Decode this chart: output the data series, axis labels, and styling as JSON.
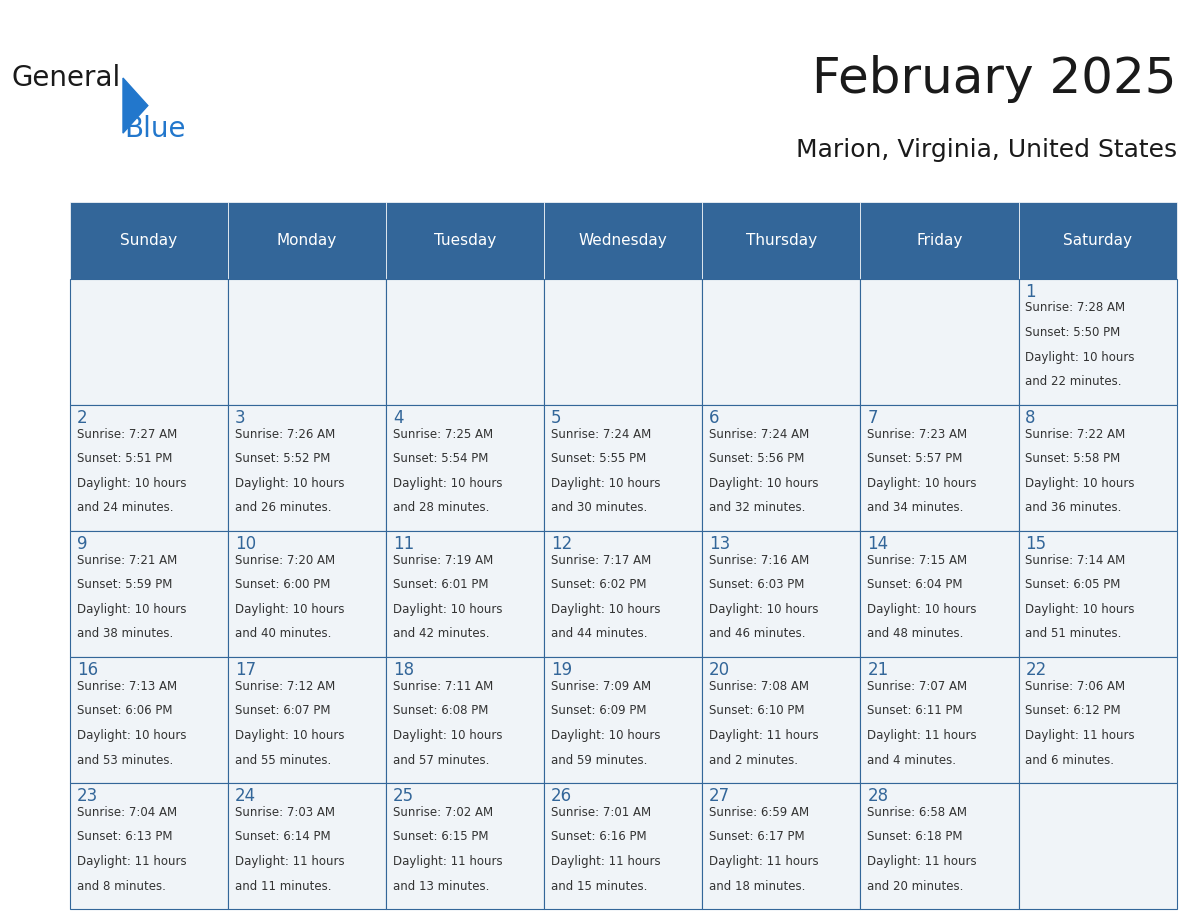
{
  "title": "February 2025",
  "subtitle": "Marion, Virginia, United States",
  "days_of_week": [
    "Sunday",
    "Monday",
    "Tuesday",
    "Wednesday",
    "Thursday",
    "Friday",
    "Saturday"
  ],
  "header_bg": "#336699",
  "header_text": "#ffffff",
  "cell_bg_light": "#f0f4f8",
  "cell_bg_white": "#ffffff",
  "border_color": "#336699",
  "day_number_color": "#336699",
  "text_color": "#333333",
  "logo_general_color": "#222222",
  "logo_blue_color": "#2277cc",
  "weeks": [
    [
      null,
      null,
      null,
      null,
      null,
      null,
      1
    ],
    [
      2,
      3,
      4,
      5,
      6,
      7,
      8
    ],
    [
      9,
      10,
      11,
      12,
      13,
      14,
      15
    ],
    [
      16,
      17,
      18,
      19,
      20,
      21,
      22
    ],
    [
      23,
      24,
      25,
      26,
      27,
      28,
      null
    ]
  ],
  "cell_data": {
    "1": {
      "sunrise": "7:28 AM",
      "sunset": "5:50 PM",
      "daylight": "10 hours and 22 minutes"
    },
    "2": {
      "sunrise": "7:27 AM",
      "sunset": "5:51 PM",
      "daylight": "10 hours and 24 minutes"
    },
    "3": {
      "sunrise": "7:26 AM",
      "sunset": "5:52 PM",
      "daylight": "10 hours and 26 minutes"
    },
    "4": {
      "sunrise": "7:25 AM",
      "sunset": "5:54 PM",
      "daylight": "10 hours and 28 minutes"
    },
    "5": {
      "sunrise": "7:24 AM",
      "sunset": "5:55 PM",
      "daylight": "10 hours and 30 minutes"
    },
    "6": {
      "sunrise": "7:24 AM",
      "sunset": "5:56 PM",
      "daylight": "10 hours and 32 minutes"
    },
    "7": {
      "sunrise": "7:23 AM",
      "sunset": "5:57 PM",
      "daylight": "10 hours and 34 minutes"
    },
    "8": {
      "sunrise": "7:22 AM",
      "sunset": "5:58 PM",
      "daylight": "10 hours and 36 minutes"
    },
    "9": {
      "sunrise": "7:21 AM",
      "sunset": "5:59 PM",
      "daylight": "10 hours and 38 minutes"
    },
    "10": {
      "sunrise": "7:20 AM",
      "sunset": "6:00 PM",
      "daylight": "10 hours and 40 minutes"
    },
    "11": {
      "sunrise": "7:19 AM",
      "sunset": "6:01 PM",
      "daylight": "10 hours and 42 minutes"
    },
    "12": {
      "sunrise": "7:17 AM",
      "sunset": "6:02 PM",
      "daylight": "10 hours and 44 minutes"
    },
    "13": {
      "sunrise": "7:16 AM",
      "sunset": "6:03 PM",
      "daylight": "10 hours and 46 minutes"
    },
    "14": {
      "sunrise": "7:15 AM",
      "sunset": "6:04 PM",
      "daylight": "10 hours and 48 minutes"
    },
    "15": {
      "sunrise": "7:14 AM",
      "sunset": "6:05 PM",
      "daylight": "10 hours and 51 minutes"
    },
    "16": {
      "sunrise": "7:13 AM",
      "sunset": "6:06 PM",
      "daylight": "10 hours and 53 minutes"
    },
    "17": {
      "sunrise": "7:12 AM",
      "sunset": "6:07 PM",
      "daylight": "10 hours and 55 minutes"
    },
    "18": {
      "sunrise": "7:11 AM",
      "sunset": "6:08 PM",
      "daylight": "10 hours and 57 minutes"
    },
    "19": {
      "sunrise": "7:09 AM",
      "sunset": "6:09 PM",
      "daylight": "10 hours and 59 minutes"
    },
    "20": {
      "sunrise": "7:08 AM",
      "sunset": "6:10 PM",
      "daylight": "11 hours and 2 minutes"
    },
    "21": {
      "sunrise": "7:07 AM",
      "sunset": "6:11 PM",
      "daylight": "11 hours and 4 minutes"
    },
    "22": {
      "sunrise": "7:06 AM",
      "sunset": "6:12 PM",
      "daylight": "11 hours and 6 minutes"
    },
    "23": {
      "sunrise": "7:04 AM",
      "sunset": "6:13 PM",
      "daylight": "11 hours and 8 minutes"
    },
    "24": {
      "sunrise": "7:03 AM",
      "sunset": "6:14 PM",
      "daylight": "11 hours and 11 minutes"
    },
    "25": {
      "sunrise": "7:02 AM",
      "sunset": "6:15 PM",
      "daylight": "11 hours and 13 minutes"
    },
    "26": {
      "sunrise": "7:01 AM",
      "sunset": "6:16 PM",
      "daylight": "11 hours and 15 minutes"
    },
    "27": {
      "sunrise": "6:59 AM",
      "sunset": "6:17 PM",
      "daylight": "11 hours and 18 minutes"
    },
    "28": {
      "sunrise": "6:58 AM",
      "sunset": "6:18 PM",
      "daylight": "11 hours and 20 minutes"
    }
  }
}
